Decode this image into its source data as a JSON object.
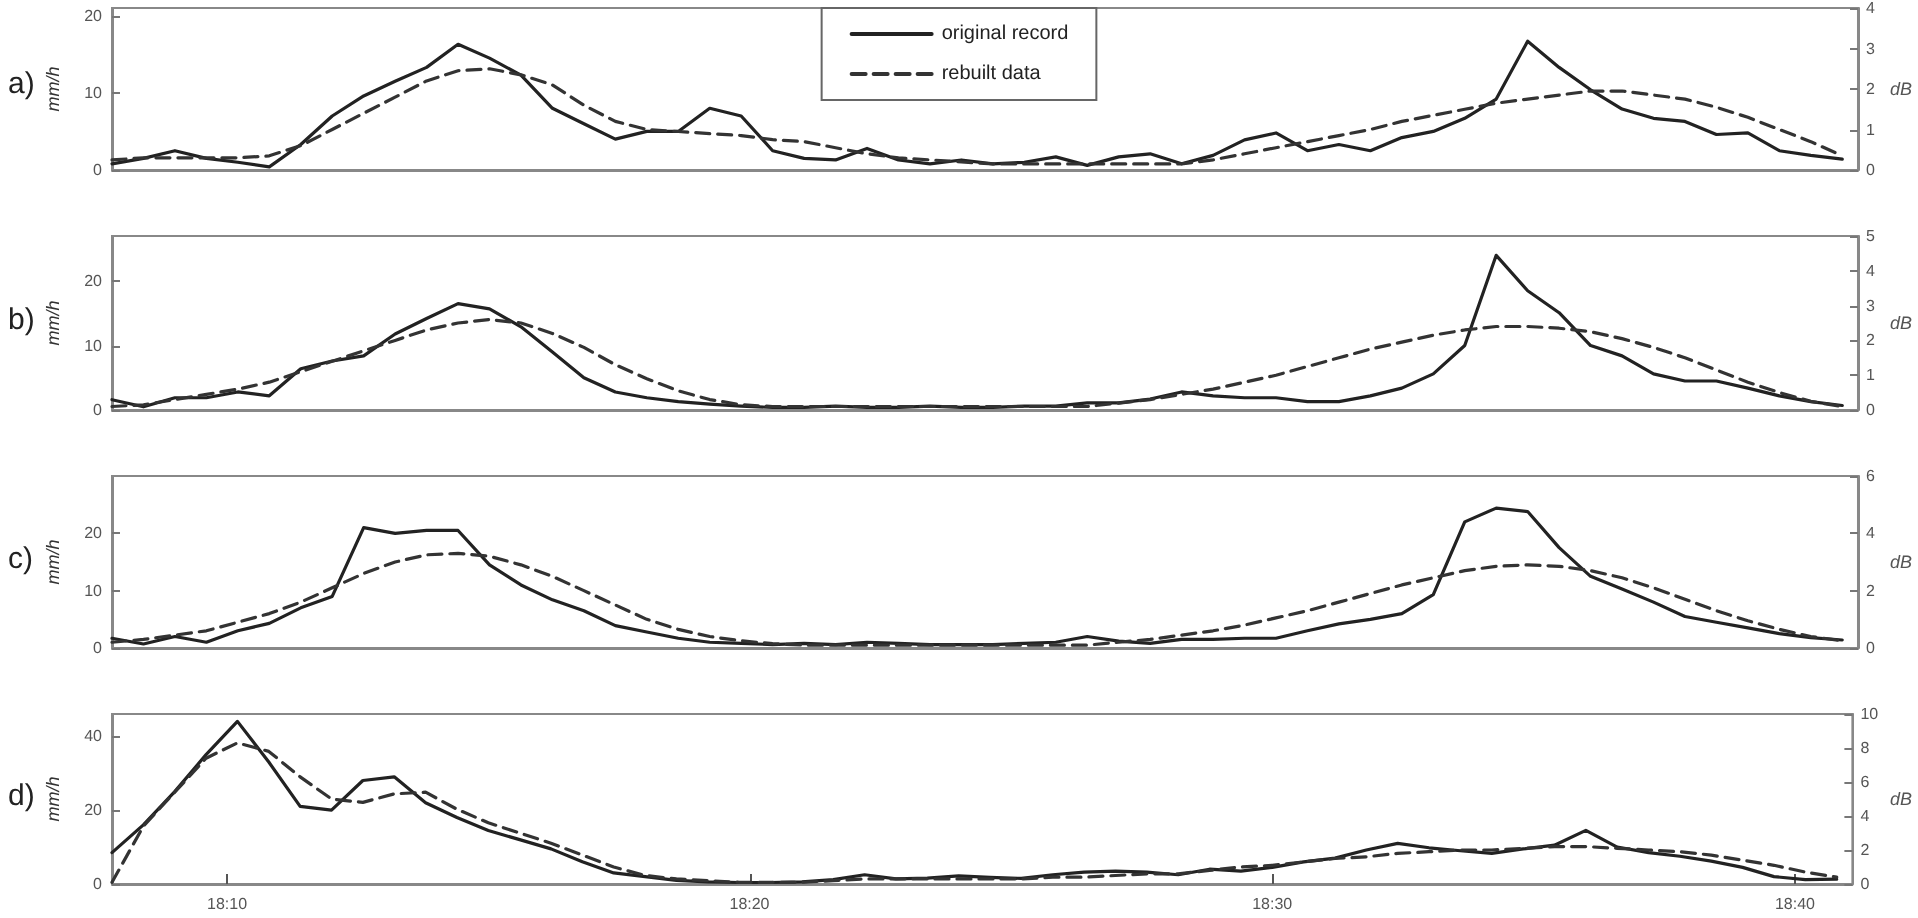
{
  "chart_data": [
    {
      "type": "line",
      "annotations": [
        "a)"
      ],
      "ylabel": "mm/h",
      "y2label": "dB",
      "xlim": [
        18.13,
        18.685
      ],
      "ylim": [
        0,
        21
      ],
      "yticks": [
        0,
        10,
        20
      ],
      "y2lim": [
        0,
        4
      ],
      "y2ticks": [
        0,
        1,
        2,
        3,
        4
      ],
      "tick_labels": "y",
      "grid": false,
      "legend": "top",
      "marker": "none",
      "x": [
        18.13,
        18.14,
        18.15,
        18.16,
        18.17,
        18.18,
        18.19,
        18.2,
        18.21,
        18.22,
        18.23,
        18.24,
        18.25,
        18.26,
        18.27,
        18.28,
        18.29,
        18.3,
        18.31,
        18.32,
        18.33,
        18.34,
        18.35,
        18.36,
        18.37,
        18.38,
        18.39,
        18.4,
        18.41,
        18.42,
        18.43,
        18.44,
        18.45,
        18.46,
        18.47,
        18.48,
        18.49,
        18.5,
        18.51,
        18.52,
        18.53,
        18.54,
        18.55,
        18.56,
        18.57,
        18.58,
        18.59,
        18.6,
        18.61,
        18.62,
        18.63,
        18.64,
        18.65,
        18.66,
        18.67,
        18.68
      ],
      "series": [
        {
          "name": "original record",
          "color": "#222222",
          "line_style": "solid",
          "values": [
            0.8,
            1.5,
            2.5,
            1.5,
            1.0,
            0.4,
            3.3,
            7.0,
            9.6,
            11.5,
            13.3,
            16.3,
            14.5,
            12.3,
            8,
            6,
            4,
            5.0,
            5.0,
            8,
            7,
            2.5,
            1.5,
            1.3,
            2.8,
            1.3,
            0.8,
            1.3,
            0.8,
            1.0,
            1.7,
            0.6,
            1.7,
            2.1,
            0.8,
            1.9,
            3.9,
            4.8,
            2.5,
            3.3,
            2.5,
            4.2,
            5.0,
            6.7,
            9.2,
            16.7,
            13.3,
            10.4,
            7.9,
            6.7,
            6.3,
            4.6,
            4.8,
            2.5,
            1.9,
            1.4
          ]
        },
        {
          "name": "rebuilt data",
          "color": "#333333",
          "line_style": "dashed",
          "axis": "y2",
          "values": [
            0.25,
            0.3,
            0.3,
            0.3,
            0.3,
            0.35,
            0.6,
            1.0,
            1.4,
            1.8,
            2.2,
            2.45,
            2.5,
            2.35,
            2.1,
            1.6,
            1.2,
            1.0,
            0.95,
            0.9,
            0.85,
            0.75,
            0.7,
            0.55,
            0.4,
            0.3,
            0.25,
            0.2,
            0.15,
            0.15,
            0.15,
            0.15,
            0.15,
            0.15,
            0.15,
            0.25,
            0.4,
            0.55,
            0.7,
            0.85,
            1.0,
            1.2,
            1.35,
            1.5,
            1.65,
            1.75,
            1.85,
            1.95,
            1.95,
            1.85,
            1.75,
            1.55,
            1.3,
            1.0,
            0.7,
            0.35
          ]
        }
      ]
    },
    {
      "type": "line",
      "annotations": [
        "b)"
      ],
      "ylabel": "mm/h",
      "y2label": "dB",
      "xlim": [
        18.13,
        18.685
      ],
      "ylim": [
        0,
        27
      ],
      "yticks": [
        0,
        10,
        20
      ],
      "y2lim": [
        0,
        5
      ],
      "y2ticks": [
        0,
        1,
        2,
        3,
        4,
        5
      ],
      "tick_labels": "y",
      "grid": false,
      "marker": "none",
      "x": [
        18.13,
        18.14,
        18.15,
        18.16,
        18.17,
        18.18,
        18.19,
        18.2,
        18.21,
        18.22,
        18.23,
        18.24,
        18.25,
        18.26,
        18.27,
        18.28,
        18.29,
        18.3,
        18.31,
        18.32,
        18.33,
        18.34,
        18.35,
        18.36,
        18.37,
        18.38,
        18.39,
        18.4,
        18.41,
        18.42,
        18.43,
        18.44,
        18.45,
        18.46,
        18.47,
        18.48,
        18.49,
        18.5,
        18.51,
        18.52,
        18.53,
        18.54,
        18.55,
        18.56,
        18.57,
        18.58,
        18.59,
        18.6,
        18.61,
        18.62,
        18.63,
        18.64,
        18.65,
        18.66,
        18.67,
        18.68
      ],
      "series": [
        {
          "color": "#222222",
          "line_style": "solid",
          "values": [
            1.6,
            0.5,
            1.9,
            1.9,
            2.8,
            2.2,
            6.4,
            7.6,
            8.4,
            11.8,
            14.2,
            16.5,
            15.7,
            12.9,
            9.0,
            5.0,
            2.8,
            1.9,
            1.3,
            0.9,
            0.6,
            0.4,
            0.4,
            0.6,
            0.4,
            0.4,
            0.6,
            0.4,
            0.4,
            0.6,
            0.6,
            1.1,
            1.1,
            1.7,
            2.8,
            2.2,
            1.9,
            1.9,
            1.3,
            1.3,
            2.2,
            3.4,
            5.6,
            10,
            24,
            18.5,
            15.1,
            10,
            8.4,
            5.6,
            4.5,
            4.5,
            3.4,
            2.2,
            1.3,
            0.7
          ]
        },
        {
          "color": "#333333",
          "line_style": "dashed",
          "axis": "y2",
          "values": [
            0.1,
            0.15,
            0.3,
            0.45,
            0.6,
            0.8,
            1.1,
            1.4,
            1.7,
            2.0,
            2.3,
            2.5,
            2.6,
            2.5,
            2.2,
            1.8,
            1.3,
            0.9,
            0.55,
            0.3,
            0.15,
            0.1,
            0.1,
            0.1,
            0.1,
            0.1,
            0.1,
            0.1,
            0.1,
            0.1,
            0.1,
            0.1,
            0.2,
            0.3,
            0.45,
            0.6,
            0.8,
            1.0,
            1.25,
            1.5,
            1.75,
            1.95,
            2.15,
            2.3,
            2.4,
            2.4,
            2.35,
            2.25,
            2.05,
            1.8,
            1.5,
            1.15,
            0.8,
            0.5,
            0.25,
            0.1
          ]
        }
      ]
    },
    {
      "type": "line",
      "annotations": [
        "c)"
      ],
      "ylabel": "mm/h",
      "y2label": "dB",
      "xlim": [
        18.13,
        18.685
      ],
      "ylim": [
        0,
        30
      ],
      "yticks": [
        0,
        10,
        20
      ],
      "y2lim": [
        0,
        6
      ],
      "y2ticks": [
        0,
        2,
        4,
        6
      ],
      "tick_labels": "y",
      "grid": false,
      "marker": "none",
      "x": [
        18.13,
        18.14,
        18.15,
        18.16,
        18.17,
        18.18,
        18.19,
        18.2,
        18.21,
        18.22,
        18.23,
        18.24,
        18.25,
        18.26,
        18.27,
        18.28,
        18.29,
        18.3,
        18.31,
        18.32,
        18.33,
        18.34,
        18.35,
        18.36,
        18.37,
        18.38,
        18.39,
        18.4,
        18.41,
        18.42,
        18.43,
        18.44,
        18.45,
        18.46,
        18.47,
        18.48,
        18.49,
        18.5,
        18.51,
        18.52,
        18.53,
        18.54,
        18.55,
        18.56,
        18.57,
        18.58,
        18.59,
        18.6,
        18.61,
        18.62,
        18.63,
        18.64,
        18.65,
        18.66,
        18.67,
        18.68
      ],
      "series": [
        {
          "color": "#222222",
          "line_style": "solid",
          "values": [
            1.7,
            0.7,
            2.0,
            1.0,
            3.0,
            4.3,
            7.0,
            9.0,
            21,
            20,
            20.5,
            20.5,
            14.5,
            11,
            8.4,
            6.5,
            3.9,
            2.8,
            1.7,
            1.0,
            0.8,
            0.6,
            0.8,
            0.6,
            1.0,
            0.8,
            0.6,
            0.6,
            0.6,
            0.8,
            1.0,
            2.0,
            1.2,
            0.8,
            1.5,
            1.5,
            1.7,
            1.7,
            3.0,
            4.2,
            5.0,
            6.0,
            9.3,
            22,
            24.4,
            23.8,
            17.5,
            12.5,
            10.3,
            8,
            5.5,
            4.5,
            3.5,
            2.5,
            1.8,
            1.4
          ]
        },
        {
          "color": "#333333",
          "line_style": "dashed",
          "axis": "y2",
          "values": [
            0.2,
            0.3,
            0.45,
            0.6,
            0.9,
            1.2,
            1.6,
            2.1,
            2.6,
            3.0,
            3.25,
            3.3,
            3.2,
            2.9,
            2.5,
            2.0,
            1.5,
            1.0,
            0.65,
            0.4,
            0.25,
            0.15,
            0.1,
            0.1,
            0.1,
            0.1,
            0.1,
            0.1,
            0.1,
            0.1,
            0.1,
            0.1,
            0.2,
            0.3,
            0.45,
            0.6,
            0.8,
            1.05,
            1.3,
            1.6,
            1.9,
            2.2,
            2.45,
            2.7,
            2.85,
            2.9,
            2.85,
            2.7,
            2.45,
            2.1,
            1.7,
            1.3,
            0.95,
            0.65,
            0.4,
            0.25
          ]
        }
      ]
    },
    {
      "type": "line",
      "annotations": [
        "d)"
      ],
      "ylabel": "mm/h",
      "y2label": "dB",
      "xlim": [
        18.13,
        18.685
      ],
      "xticks": [
        {
          "value": 18.1667,
          "label": "18:10"
        },
        {
          "value": 18.3333,
          "label": "18:20"
        },
        {
          "value": 18.5,
          "label": "18:30"
        },
        {
          "value": 18.6667,
          "label": "18:40"
        }
      ],
      "ylim": [
        0,
        46
      ],
      "yticks": [
        0,
        20,
        40
      ],
      "y2lim": [
        0,
        10
      ],
      "y2ticks": [
        0,
        2,
        4,
        6,
        8,
        10
      ],
      "grid": false,
      "marker": "none",
      "x": [
        18.13,
        18.14,
        18.15,
        18.16,
        18.17,
        18.18,
        18.19,
        18.2,
        18.21,
        18.22,
        18.23,
        18.24,
        18.25,
        18.26,
        18.27,
        18.28,
        18.29,
        18.3,
        18.31,
        18.32,
        18.33,
        18.34,
        18.35,
        18.36,
        18.37,
        18.38,
        18.39,
        18.4,
        18.41,
        18.42,
        18.43,
        18.44,
        18.45,
        18.46,
        18.47,
        18.48,
        18.49,
        18.5,
        18.51,
        18.52,
        18.53,
        18.54,
        18.55,
        18.56,
        18.57,
        18.58,
        18.59,
        18.6,
        18.61,
        18.62,
        18.63,
        18.64,
        18.65,
        18.66,
        18.67,
        18.68
      ],
      "series": [
        {
          "color": "#222222",
          "line_style": "solid",
          "values": [
            8.5,
            16,
            25,
            35,
            44,
            33,
            21,
            20,
            28,
            29,
            22,
            18,
            14.5,
            12,
            9.5,
            6,
            3,
            2.0,
            1.0,
            0.6,
            0.4,
            0.4,
            0.6,
            1.2,
            2.5,
            1.4,
            1.6,
            2.2,
            1.8,
            1.5,
            2.5,
            3.2,
            3.5,
            3.2,
            2.5,
            4.0,
            3.5,
            4.5,
            6,
            7,
            9.2,
            11,
            9.8,
            9,
            8.3,
            9.5,
            10.5,
            14.5,
            10,
            8.5,
            7.5,
            6.2,
            4.5,
            2,
            1.2,
            1.3
          ]
        },
        {
          "color": "#333333",
          "line_style": "dashed",
          "axis": "y2",
          "values": [
            0.1,
            3.4,
            5.4,
            7.4,
            8.3,
            7.8,
            6.3,
            5.0,
            4.8,
            5.3,
            5.4,
            4.4,
            3.6,
            3.0,
            2.4,
            1.7,
            1.0,
            0.5,
            0.3,
            0.2,
            0.1,
            0.1,
            0.1,
            0.2,
            0.3,
            0.3,
            0.3,
            0.3,
            0.3,
            0.3,
            0.4,
            0.4,
            0.5,
            0.6,
            0.6,
            0.8,
            1.0,
            1.1,
            1.3,
            1.5,
            1.6,
            1.8,
            1.9,
            2.0,
            2.0,
            2.1,
            2.2,
            2.2,
            2.1,
            2.0,
            1.9,
            1.7,
            1.4,
            1.1,
            0.7,
            0.4
          ]
        }
      ]
    }
  ]
}
